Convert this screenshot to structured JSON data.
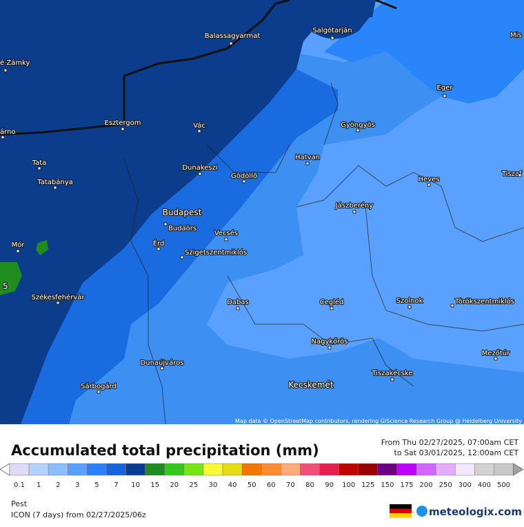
{
  "map": {
    "places": [
      "é Zámky",
      "Balassagyarmat",
      "Salgótarján",
      "Mis",
      "Eger",
      "árno",
      "Esztergom",
      "Vác",
      "Gyöngyös",
      "Tata",
      "Dunakeszi",
      "Gödöllő",
      "Hatvan",
      "Tiszaf",
      "Tatabánya",
      "Heves",
      "Jászberény",
      "Budapest",
      "Budaörs",
      "Vecsés",
      "Mór",
      "Érd",
      "Szigetszentmiklós",
      "Székesfehérvár",
      "Dabas",
      "Cegléd",
      "Szolnok",
      "Törökszentmiklós",
      "Nagykőrös",
      "Mezőtúr",
      "Dunaújváros",
      "Tiszakécske",
      "Kecskemét",
      "Sárbogárd"
    ],
    "value_marker": "5",
    "attribution": "Map data © OpenStreetMap contributors, rendering GIScience Research Group @ Heidelberg University"
  },
  "legend": {
    "title": "Accumulated total precipitation (mm)",
    "period_from": "From Thu 02/27/2025, 07:00am CET",
    "period_to": "to Sat 03/01/2025, 12:00am CET",
    "ticks": [
      0.1,
      1,
      2,
      3,
      5,
      7,
      10,
      15,
      20,
      25,
      30,
      40,
      50,
      60,
      70,
      80,
      90,
      100,
      125,
      150,
      175,
      200,
      250,
      300,
      400,
      500
    ],
    "colors": [
      "#dcdcf5",
      "#b4d2ff",
      "#8cbeff",
      "#5aa0ff",
      "#2882ff",
      "#1464dc",
      "#0a3c96",
      "#1e8c1e",
      "#32c81e",
      "#78e614",
      "#fafa32",
      "#e6dc14",
      "#f07800",
      "#ff8c32",
      "#ffaa78",
      "#f05078",
      "#e61e50",
      "#be0000",
      "#960000",
      "#6e0082",
      "#be00ff",
      "#d264ff",
      "#e6aaff",
      "#f5e6ff",
      "#d2d2d2",
      "#c8c8c8"
    ]
  },
  "footer": {
    "region": "Pest",
    "model": "ICON (7 days) from 02/27/2025/06z",
    "brand": "meteologix.com"
  }
}
